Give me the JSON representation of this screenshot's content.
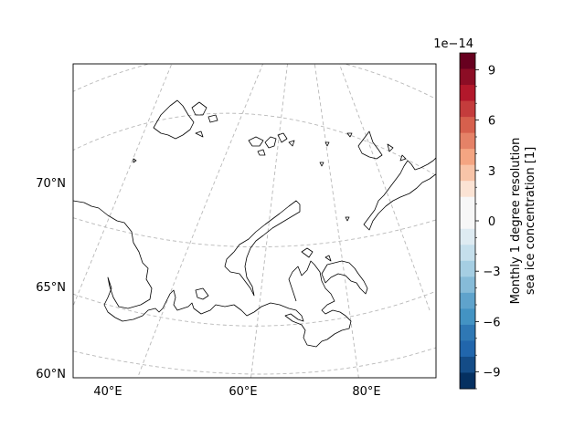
{
  "map": {
    "lat_labels": [
      "70°N",
      "65°N",
      "60°N"
    ],
    "lon_labels": [
      "40°E",
      "60°E",
      "80°E"
    ],
    "gridline_color": "#b8b8b8",
    "coastline_color": "#000000"
  },
  "colorbar": {
    "exponent": "1e−14",
    "ticks": [
      "9",
      "6",
      "3",
      "0",
      "−3",
      "−6",
      "−9"
    ],
    "label_line1": "Monthly 1 degree resolution",
    "label_line2": "sea ice concentration [1]",
    "colors": [
      "#67001f",
      "#8c0d25",
      "#b2182b",
      "#c43c3c",
      "#d6604d",
      "#e58267",
      "#f4a582",
      "#f8c4a8",
      "#fbe3d4",
      "#f7f7f7",
      "#f7f7f7",
      "#deebf2",
      "#c5dfec",
      "#a5cee3",
      "#86bbd8",
      "#5fa3cc",
      "#4393c3",
      "#2f78b4",
      "#2166ac",
      "#144c87",
      "#053061"
    ]
  }
}
